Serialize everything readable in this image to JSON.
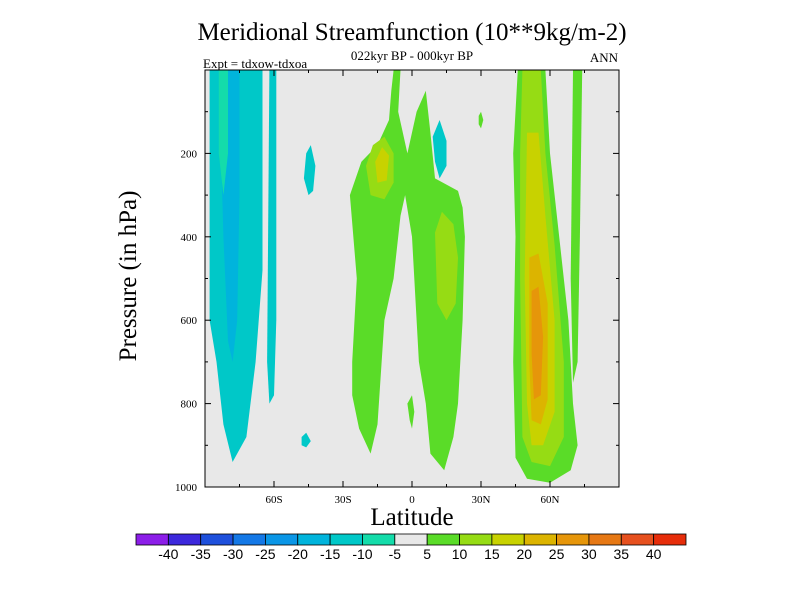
{
  "chart_data": {
    "type": "heatmap",
    "title": "Meridional Streamfunction (10**9kg/m-2)",
    "subtitle_center": "022kyr BP - 000kyr BP",
    "subtitle_left": "Expt = tdxow-tdxoa",
    "subtitle_right": "ANN",
    "xlabel": "Latitude",
    "ylabel": "Pressure (in hPa)",
    "x_range": [
      -90,
      90
    ],
    "y_range": [
      1000,
      0
    ],
    "x_ticks": [
      {
        "value": -60,
        "label": "60S"
      },
      {
        "value": -30,
        "label": "30S"
      },
      {
        "value": 0,
        "label": "0"
      },
      {
        "value": 30,
        "label": "30N"
      },
      {
        "value": 60,
        "label": "60N"
      }
    ],
    "y_ticks": [
      {
        "value": 200,
        "label": "200"
      },
      {
        "value": 400,
        "label": "400"
      },
      {
        "value": 600,
        "label": "600"
      },
      {
        "value": 800,
        "label": "800"
      },
      {
        "value": 1000,
        "label": "1000"
      }
    ],
    "background_color": "#e8e8e8",
    "colorbar": {
      "levels": [
        "-40",
        "-35",
        "-30",
        "-25",
        "-20",
        "-15",
        "-10",
        "-5",
        "5",
        "10",
        "15",
        "20",
        "25",
        "30",
        "35",
        "40"
      ],
      "colors": [
        "#8c1ee8",
        "#3c28dc",
        "#1e50dc",
        "#1478e6",
        "#0a96e6",
        "#00b4dc",
        "#00c8c8",
        "#14dcaa",
        "#e8e8e8",
        "#5adc28",
        "#96dc14",
        "#c8d200",
        "#dcb400",
        "#e6960a",
        "#e67814",
        "#e6501e",
        "#e62d0a"
      ]
    },
    "regions": [
      {
        "kind": "poly",
        "level": 6,
        "pts": [
          [
            -88,
            0
          ],
          [
            -65,
            0
          ],
          [
            -65,
            480
          ],
          [
            -68,
            700
          ],
          [
            -72,
            880
          ],
          [
            -78,
            940
          ],
          [
            -82,
            850
          ],
          [
            -85,
            700
          ],
          [
            -88,
            600
          ]
        ]
      },
      {
        "kind": "poly",
        "level": 5,
        "pts": [
          [
            -83,
            0
          ],
          [
            -75,
            0
          ],
          [
            -75,
            300
          ],
          [
            -76,
            600
          ],
          [
            -78,
            700
          ],
          [
            -80,
            650
          ],
          [
            -82,
            400
          ],
          [
            -83,
            200
          ]
        ]
      },
      {
        "kind": "poly",
        "level": 6,
        "pts": [
          [
            -62,
            0
          ],
          [
            -59,
            0
          ],
          [
            -59,
            600
          ],
          [
            -60,
            780
          ],
          [
            -62,
            800
          ],
          [
            -63,
            700
          ]
        ]
      },
      {
        "kind": "poly",
        "level": 6,
        "pts": [
          [
            -46,
            200
          ],
          [
            -44,
            180
          ],
          [
            -42,
            230
          ],
          [
            -43,
            290
          ],
          [
            -45,
            300
          ],
          [
            -47,
            260
          ]
        ]
      },
      {
        "kind": "poly",
        "level": 6,
        "pts": [
          [
            -48,
            880
          ],
          [
            -46,
            870
          ],
          [
            -44,
            890
          ],
          [
            -46,
            905
          ],
          [
            -48,
            900
          ]
        ]
      },
      {
        "kind": "poly",
        "level": 9,
        "pts": [
          [
            -8,
            0
          ],
          [
            -5,
            0
          ],
          [
            -6,
            100
          ],
          [
            -2,
            200
          ],
          [
            2,
            100
          ],
          [
            6,
            50
          ],
          [
            8,
            150
          ],
          [
            10,
            260
          ],
          [
            20,
            290
          ],
          [
            22,
            330
          ],
          [
            23,
            400
          ],
          [
            22,
            600
          ],
          [
            20,
            800
          ],
          [
            18,
            880
          ],
          [
            14,
            960
          ],
          [
            8,
            920
          ],
          [
            6,
            800
          ],
          [
            3,
            700
          ],
          [
            0,
            400
          ],
          [
            -3,
            300
          ],
          [
            -5,
            350
          ],
          [
            -8,
            500
          ],
          [
            -12,
            600
          ],
          [
            -15,
            850
          ],
          [
            -18,
            920
          ],
          [
            -23,
            860
          ],
          [
            -26,
            780
          ],
          [
            -26,
            700
          ],
          [
            -24,
            500
          ],
          [
            -27,
            300
          ],
          [
            -22,
            220
          ],
          [
            -15,
            180
          ],
          [
            -10,
            120
          ],
          [
            -9,
            50
          ]
        ]
      },
      {
        "kind": "poly",
        "level": 10,
        "pts": [
          [
            -20,
            230
          ],
          [
            -17,
            180
          ],
          [
            -12,
            160
          ],
          [
            -8,
            200
          ],
          [
            -8,
            270
          ],
          [
            -12,
            310
          ],
          [
            -18,
            300
          ]
        ]
      },
      {
        "kind": "poly",
        "level": 11,
        "pts": [
          [
            -16,
            220
          ],
          [
            -13,
            185
          ],
          [
            -10,
            205
          ],
          [
            -11,
            265
          ],
          [
            -15,
            270
          ]
        ]
      },
      {
        "kind": "poly",
        "level": 10,
        "pts": [
          [
            10,
            390
          ],
          [
            13,
            340
          ],
          [
            18,
            370
          ],
          [
            20,
            450
          ],
          [
            19,
            560
          ],
          [
            15,
            600
          ],
          [
            11,
            560
          ]
        ]
      },
      {
        "kind": "poly",
        "level": 6,
        "pts": [
          [
            9,
            160
          ],
          [
            12,
            120
          ],
          [
            15,
            170
          ],
          [
            15,
            230
          ],
          [
            12,
            260
          ],
          [
            10,
            220
          ]
        ]
      },
      {
        "kind": "poly",
        "level": 9,
        "pts": [
          [
            -2,
            800
          ],
          [
            0,
            780
          ],
          [
            1,
            820
          ],
          [
            0,
            860
          ],
          [
            -1,
            840
          ]
        ]
      },
      {
        "kind": "poly",
        "level": 9,
        "pts": [
          [
            29,
            110
          ],
          [
            30,
            100
          ],
          [
            31,
            120
          ],
          [
            30,
            140
          ],
          [
            29,
            130
          ]
        ]
      },
      {
        "kind": "poly",
        "level": 9,
        "pts": [
          [
            46,
            0
          ],
          [
            58,
            0
          ],
          [
            60,
            200
          ],
          [
            64,
            400
          ],
          [
            68,
            600
          ],
          [
            70,
            800
          ],
          [
            72,
            900
          ],
          [
            69,
            960
          ],
          [
            60,
            990
          ],
          [
            50,
            980
          ],
          [
            45,
            930
          ],
          [
            44,
            700
          ],
          [
            45,
            400
          ],
          [
            44,
            200
          ]
        ]
      },
      {
        "kind": "poly",
        "level": 10,
        "pts": [
          [
            48,
            0
          ],
          [
            56,
            0
          ],
          [
            58,
            200
          ],
          [
            62,
            420
          ],
          [
            66,
            700
          ],
          [
            66,
            880
          ],
          [
            60,
            950
          ],
          [
            52,
            940
          ],
          [
            48,
            880
          ],
          [
            47,
            500
          ],
          [
            47,
            200
          ]
        ]
      },
      {
        "kind": "poly",
        "level": 11,
        "pts": [
          [
            50,
            150
          ],
          [
            55,
            150
          ],
          [
            58,
            350
          ],
          [
            62,
            600
          ],
          [
            62,
            820
          ],
          [
            57,
            900
          ],
          [
            52,
            900
          ],
          [
            50,
            800
          ],
          [
            49,
            500
          ]
        ]
      },
      {
        "kind": "poly",
        "level": 12,
        "pts": [
          [
            51,
            450
          ],
          [
            55,
            440
          ],
          [
            59,
            560
          ],
          [
            59,
            790
          ],
          [
            56,
            850
          ],
          [
            52,
            840
          ],
          [
            51,
            700
          ]
        ]
      },
      {
        "kind": "poly",
        "level": 13,
        "pts": [
          [
            52,
            530
          ],
          [
            55,
            520
          ],
          [
            57,
            640
          ],
          [
            56,
            780
          ],
          [
            53,
            790
          ],
          [
            52,
            680
          ]
        ]
      },
      {
        "kind": "poly",
        "level": 9,
        "pts": [
          [
            70,
            0
          ],
          [
            74,
            0
          ],
          [
            73,
            400
          ],
          [
            72,
            700
          ],
          [
            70,
            750
          ],
          [
            69,
            500
          ]
        ]
      },
      {
        "kind": "poly",
        "level": 7,
        "pts": [
          [
            -84,
            0
          ],
          [
            -80,
            0
          ],
          [
            -80,
            200
          ],
          [
            -82,
            300
          ],
          [
            -84,
            200
          ]
        ]
      }
    ]
  }
}
